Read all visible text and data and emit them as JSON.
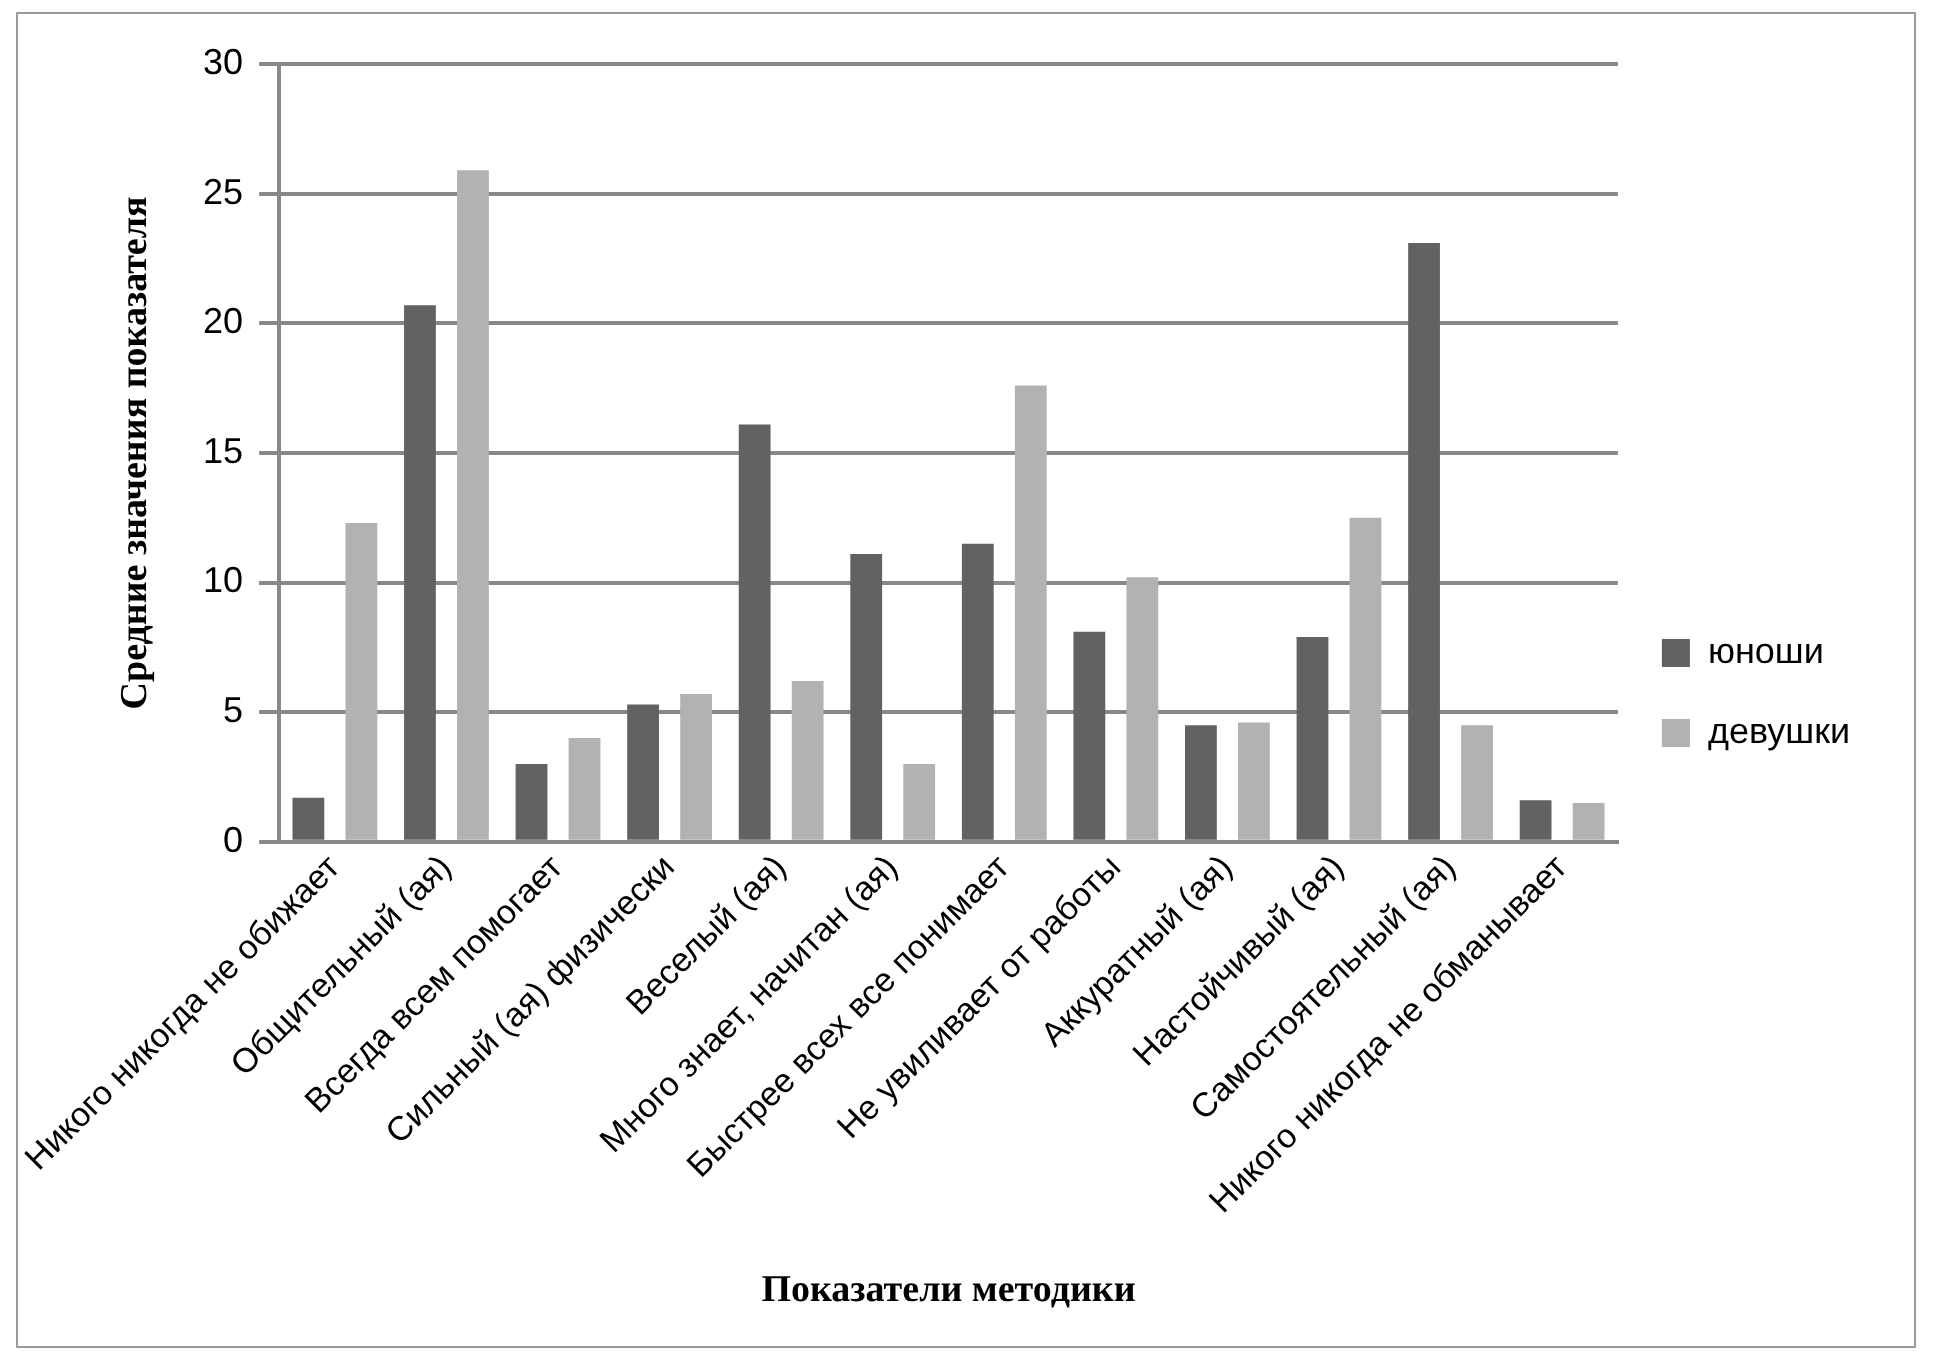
{
  "chart_data": {
    "type": "bar",
    "xlabel": "Показатели методики",
    "ylabel": "Средние значения показателя",
    "categories": [
      "Никого никогда не обижает",
      "Общительный (ая)",
      "Всегда всем помогает",
      "Сильный (ая) физически",
      "Веселый (ая)",
      "Много знает, начитан (ая)",
      "Быстрее всех все понимает",
      "Не увиливает от работы",
      "Аккуратный (ая)",
      "Настойчивый (ая)",
      "Самостоятельный (ая)",
      "Никого никогда не обманывает"
    ],
    "series": [
      {
        "name": "юноши",
        "color": "#626262",
        "values": [
          1.7,
          20.7,
          3.0,
          5.3,
          16.1,
          11.1,
          11.5,
          8.1,
          4.5,
          7.9,
          23.1,
          1.6
        ]
      },
      {
        "name": "девушки",
        "color": "#b2b2b2",
        "values": [
          12.3,
          25.9,
          4.0,
          5.7,
          6.2,
          3.0,
          17.6,
          10.2,
          4.6,
          12.5,
          4.5,
          1.5
        ]
      }
    ],
    "ylim": [
      0,
      30
    ],
    "yticks": [
      0,
      5,
      10,
      15,
      20,
      25,
      30
    ],
    "grid": "y",
    "legend": "right"
  }
}
